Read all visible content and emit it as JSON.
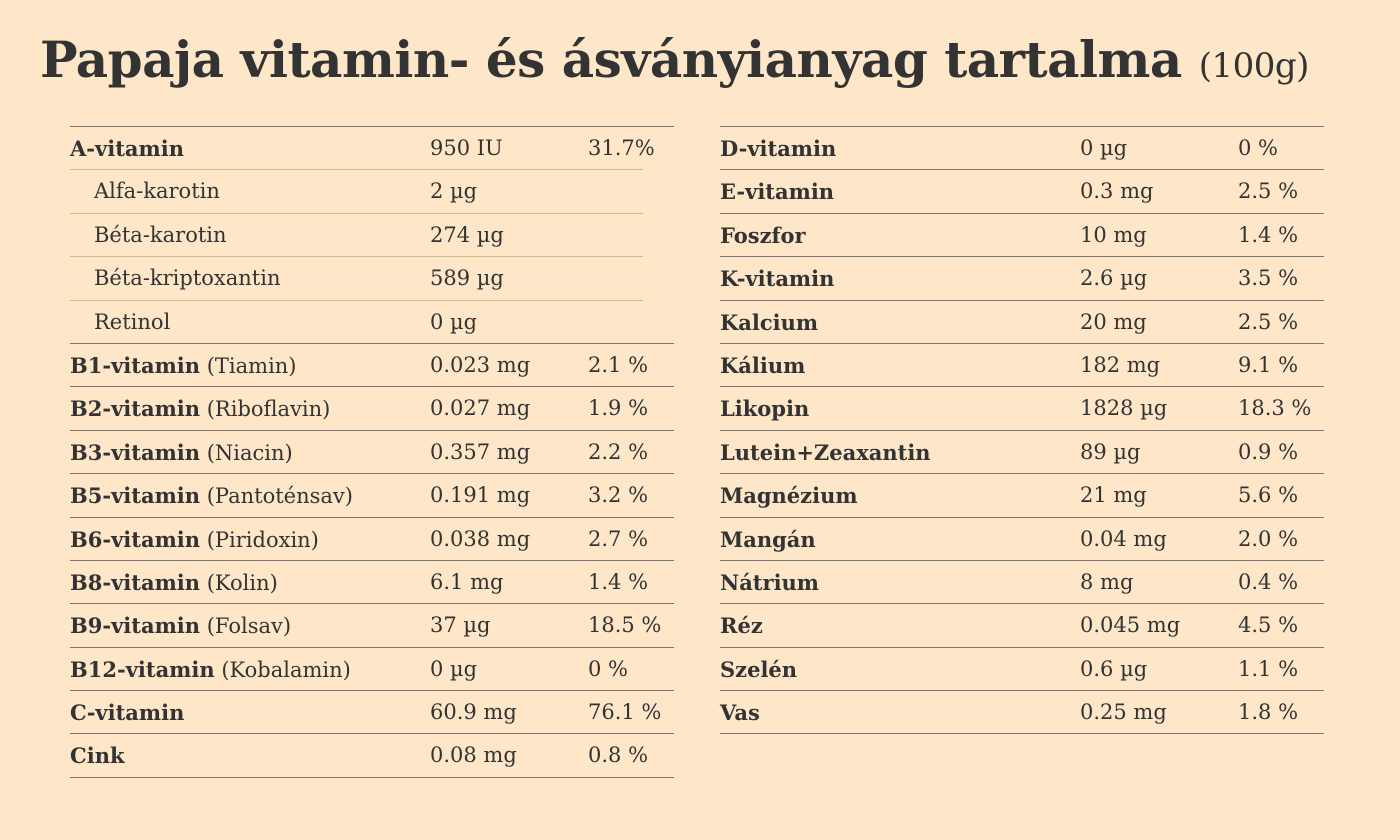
{
  "title": "Papaja vitamin- és ásványianyag tartalma",
  "subtitle": "(100g)",
  "left_rows": [
    {
      "name": "A-vitamin",
      "extra": "",
      "amount": "950 IU",
      "percent": "31.7%",
      "sub": false
    },
    {
      "name": "Alfa-karotin",
      "extra": "",
      "amount": "2 µg",
      "percent": "",
      "sub": true
    },
    {
      "name": "Béta-karotin",
      "extra": "",
      "amount": "274 µg",
      "percent": "",
      "sub": true
    },
    {
      "name": "Béta-kriptoxantin",
      "extra": "",
      "amount": "589 µg",
      "percent": "",
      "sub": true
    },
    {
      "name": "Retinol",
      "extra": "",
      "amount": "0 µg",
      "percent": "",
      "sub": true
    },
    {
      "name": "B1-vitamin",
      "extra": "(Tiamin)",
      "amount": "0.023 mg",
      "percent": "2.1 %",
      "sub": false
    },
    {
      "name": "B2-vitamin",
      "extra": "(Riboflavin)",
      "amount": "0.027 mg",
      "percent": "1.9 %",
      "sub": false
    },
    {
      "name": "B3-vitamin",
      "extra": "(Niacin)",
      "amount": "0.357 mg",
      "percent": "2.2 %",
      "sub": false
    },
    {
      "name": "B5-vitamin",
      "extra": "(Pantoténsav)",
      "amount": "0.191 mg",
      "percent": "3.2 %",
      "sub": false
    },
    {
      "name": "B6-vitamin",
      "extra": "(Piridoxin)",
      "amount": "0.038 mg",
      "percent": "2.7 %",
      "sub": false
    },
    {
      "name": "B8-vitamin",
      "extra": "(Kolin)",
      "amount": "6.1 mg",
      "percent": "1.4 %",
      "sub": false
    },
    {
      "name": "B9-vitamin",
      "extra": "(Folsav)",
      "amount": "37 µg",
      "percent": "18.5 %",
      "sub": false
    },
    {
      "name": "B12-vitamin",
      "extra": "(Kobalamin)",
      "amount": "0 µg",
      "percent": "0 %",
      "sub": false
    },
    {
      "name": "C-vitamin",
      "extra": "",
      "amount": "60.9 mg",
      "percent": "76.1 %",
      "sub": false
    },
    {
      "name": "Cink",
      "extra": "",
      "amount": "0.08 mg",
      "percent": "0.8 %",
      "sub": false
    }
  ],
  "right_rows": [
    {
      "name": "D-vitamin",
      "extra": "",
      "amount": "0 µg",
      "percent": "0 %",
      "sub": false
    },
    {
      "name": "E-vitamin",
      "extra": "",
      "amount": "0.3 mg",
      "percent": "2.5 %",
      "sub": false
    },
    {
      "name": "Foszfor",
      "extra": "",
      "amount": "10 mg",
      "percent": "1.4 %",
      "sub": false
    },
    {
      "name": "K-vitamin",
      "extra": "",
      "amount": "2.6 µg",
      "percent": "3.5 %",
      "sub": false
    },
    {
      "name": "Kalcium",
      "extra": "",
      "amount": "20 mg",
      "percent": "2.5 %",
      "sub": false
    },
    {
      "name": "Kálium",
      "extra": "",
      "amount": "182 mg",
      "percent": "9.1 %",
      "sub": false
    },
    {
      "name": "Likopin",
      "extra": "",
      "amount": "1828 µg",
      "percent": "18.3 %",
      "sub": false
    },
    {
      "name": "Lutein+Zeaxantin",
      "extra": "",
      "amount": "89 µg",
      "percent": "0.9 %",
      "sub": false
    },
    {
      "name": "Magnézium",
      "extra": "",
      "amount": "21 mg",
      "percent": "5.6 %",
      "sub": false
    },
    {
      "name": "Mangán",
      "extra": "",
      "amount": "0.04 mg",
      "percent": "2.0 %",
      "sub": false
    },
    {
      "name": "Nátrium",
      "extra": "",
      "amount": "8 mg",
      "percent": "0.4 %",
      "sub": false
    },
    {
      "name": "Réz",
      "extra": "",
      "amount": "0.045 mg",
      "percent": "4.5 %",
      "sub": false
    },
    {
      "name": "Szelén",
      "extra": "",
      "amount": "0.6 µg",
      "percent": "1.1 %",
      "sub": false
    },
    {
      "name": "Vas",
      "extra": "",
      "amount": "0.25 mg",
      "percent": "1.8 %",
      "sub": false
    }
  ]
}
